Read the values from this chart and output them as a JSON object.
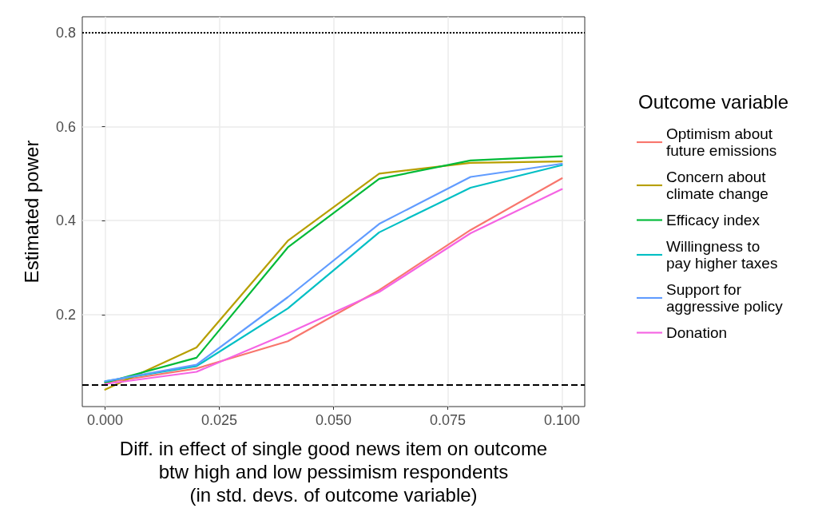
{
  "chart_data": {
    "type": "line",
    "xlabel": "Diff. in effect of single good news item on outcome\nbtw high and low pessimism respondents\n(in std. devs. of outcome variable)",
    "ylabel": "Estimated power",
    "legend_title": "Outcome variable",
    "x": [
      0,
      0.02,
      0.04,
      0.06,
      0.08,
      0.1
    ],
    "series": [
      {
        "name": "Optimism about\nfuture emissions",
        "color": "#f8766d",
        "values": [
          0.055,
          0.085,
          0.143,
          0.252,
          0.38,
          0.49
        ]
      },
      {
        "name": "Concern about\nclimate change",
        "color": "#b79f00",
        "values": [
          0.04,
          0.13,
          0.357,
          0.5,
          0.523,
          0.526
        ]
      },
      {
        "name": "Efficacy index",
        "color": "#00ba38",
        "values": [
          0.055,
          0.108,
          0.343,
          0.489,
          0.528,
          0.537
        ]
      },
      {
        "name": "Willingness to\npay higher taxes",
        "color": "#00bfc4",
        "values": [
          0.058,
          0.09,
          0.213,
          0.375,
          0.47,
          0.518
        ]
      },
      {
        "name": "Support for\naggressive policy",
        "color": "#619cff",
        "values": [
          0.058,
          0.093,
          0.237,
          0.393,
          0.493,
          0.521
        ]
      },
      {
        "name": "Donation",
        "color": "#f564e3",
        "values": [
          0.052,
          0.078,
          0.16,
          0.248,
          0.373,
          0.467
        ]
      }
    ],
    "xlim": [
      -0.005,
      0.105
    ],
    "xticks": [
      {
        "value": 0,
        "label": "0.000"
      },
      {
        "value": 0.025,
        "label": "0.025"
      },
      {
        "value": 0.05,
        "label": "0.050"
      },
      {
        "value": 0.075,
        "label": "0.075"
      },
      {
        "value": 0.1,
        "label": "0.100"
      }
    ],
    "ylim": [
      0.004,
      0.834
    ],
    "yticks": [
      0.2,
      0.4,
      0.6,
      0.8
    ],
    "ref_lines": [
      {
        "axis": "y",
        "value": 0.8,
        "line_style": "dotted",
        "color": "#000000"
      },
      {
        "axis": "y",
        "value": 0.05,
        "line_style": "dashed",
        "color": "#000000"
      }
    ],
    "grid": true,
    "legend": "right",
    "marker": "none",
    "line_style": "solid"
  }
}
